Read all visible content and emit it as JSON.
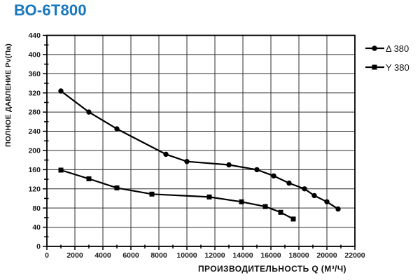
{
  "title_color": "#1777BE",
  "chart_data": {
    "type": "line",
    "title": "ВО-6Т800",
    "xlabel": "ПРОИЗВОДИТЕЛЬНОСТЬ  Q  (М³/Ч)",
    "ylabel": "ПОЛНОЕ ДАВЛЕНИЕ  Pv(Па)",
    "xlim": [
      0,
      22000
    ],
    "ylim": [
      0,
      440
    ],
    "x_major_step": 2000,
    "x_minor_step": 1000,
    "y_major_step": 40,
    "y_minor_step": 20,
    "grid": true,
    "legend_position": "top-right-outside",
    "line_color": "#000000",
    "series": [
      {
        "name": "Δ 380",
        "marker": "circle",
        "points": [
          [
            1000,
            324
          ],
          [
            3000,
            280
          ],
          [
            5000,
            245
          ],
          [
            8500,
            192
          ],
          [
            10000,
            177
          ],
          [
            13000,
            170
          ],
          [
            15000,
            160
          ],
          [
            16200,
            147
          ],
          [
            17300,
            132
          ],
          [
            18400,
            120
          ],
          [
            19100,
            106
          ],
          [
            20000,
            93
          ],
          [
            20800,
            78
          ]
        ]
      },
      {
        "name": "Y 380",
        "marker": "square",
        "points": [
          [
            1000,
            159
          ],
          [
            3000,
            141
          ],
          [
            5000,
            122
          ],
          [
            7500,
            109
          ],
          [
            11600,
            103
          ],
          [
            13900,
            93
          ],
          [
            15600,
            83
          ],
          [
            16700,
            71
          ],
          [
            17600,
            57
          ]
        ]
      }
    ]
  }
}
